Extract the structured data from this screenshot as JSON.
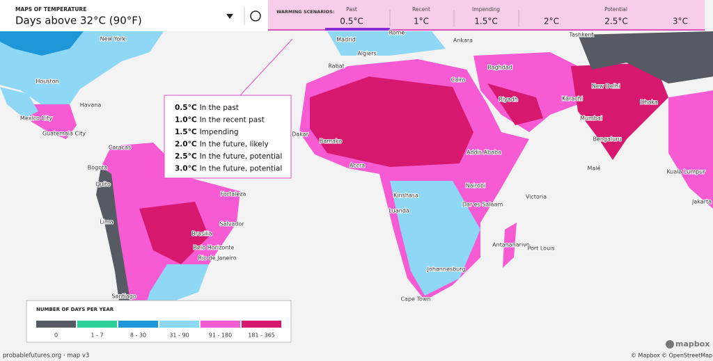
{
  "header": {
    "kicker": "MAPS OF TEMPERATURE",
    "title": "Days above 32°C (90°F)"
  },
  "scenarios": {
    "label": "WARMING SCENARIOS:",
    "groups": [
      {
        "name": "Past",
        "options": [
          "0.5°C"
        ]
      },
      {
        "name": "Recent",
        "options": [
          "1°C"
        ]
      },
      {
        "name": "Impending",
        "options": [
          "1.5°C"
        ]
      },
      {
        "name": "Potential",
        "options": [
          "2°C",
          "2.5°C",
          "3°C"
        ]
      }
    ]
  },
  "tooltip": {
    "lines": [
      {
        "temp": "0.5°C",
        "text": "In the past"
      },
      {
        "temp": "1.0°C",
        "text": "In the recent past"
      },
      {
        "temp": "1.5°C",
        "text": "Impending"
      },
      {
        "temp": "2.0°C",
        "text": "In the future, likely"
      },
      {
        "temp": "2.5°C",
        "text": "In the future, potential"
      },
      {
        "temp": "3.0°C",
        "text": "In the future, potential"
      }
    ]
  },
  "legend": {
    "title": "NUMBER OF DAYS PER YEAR",
    "bins": [
      {
        "label": "0",
        "color": "#555a63"
      },
      {
        "label": "1 - 7",
        "color": "#2fcf9b"
      },
      {
        "label": "8 - 30",
        "color": "#1d97d8"
      },
      {
        "label": "31 - 90",
        "color": "#8fd8f5"
      },
      {
        "label": "91 - 180",
        "color": "#f65bd3"
      },
      {
        "label": "181 - 365",
        "color": "#d6186f"
      }
    ]
  },
  "cities": [
    "New York",
    "Houston",
    "Havana",
    "Mexico City",
    "Guatemala City",
    "Caracas",
    "Bogota",
    "Quito",
    "Lima",
    "Fortaleza",
    "Salvador",
    "Brasilia",
    "Belo Horizonte",
    "Rio de Janeiro",
    "Santiago",
    "Madrid",
    "Rome",
    "Algiers",
    "Rabat",
    "Ankara",
    "Tashkent",
    "Baghdad",
    "Cairo",
    "Riyadh",
    "New Delhi",
    "Karachi",
    "Dhaka",
    "Mumbai",
    "Bengaluru",
    "Dakar",
    "Bamako",
    "Accra",
    "Addis Ababa",
    "Malé",
    "Kuala Lumpur",
    "Nairobi",
    "Kinshasa",
    "Dar es Salaam",
    "Victoria",
    "Luanda",
    "Jakarta",
    "Antananarivo",
    "Port Louis",
    "Johannesburg",
    "Cape Town"
  ],
  "footer": {
    "credit": "probablefutures.org · map v3",
    "logo": "mapbox",
    "attribution_1": "© Mapbox",
    "attribution_2": "© OpenStreetMap"
  }
}
